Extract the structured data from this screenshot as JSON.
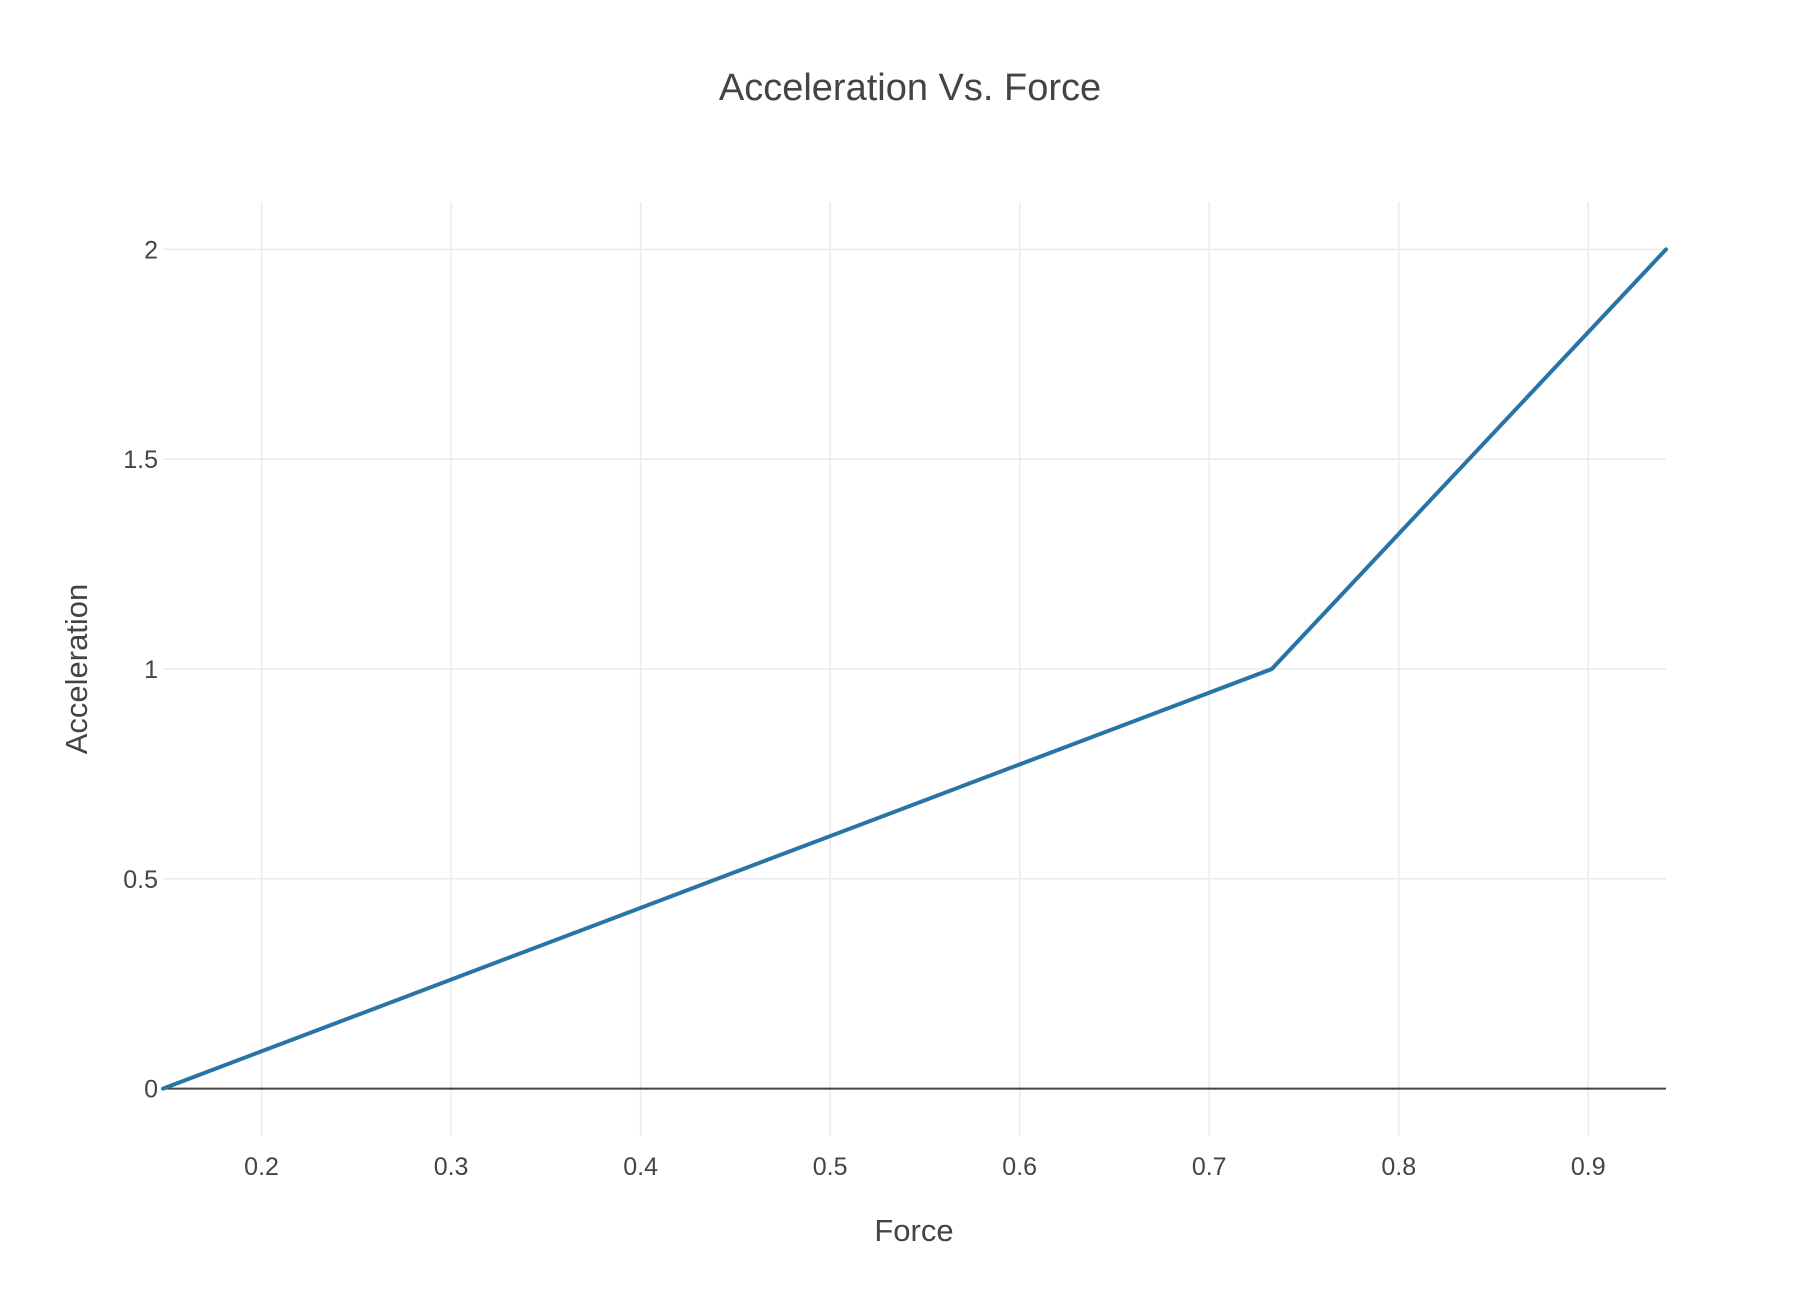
{
  "chart_data": {
    "type": "line",
    "title": "Acceleration Vs. Force",
    "xlabel": "Force",
    "ylabel": "Acceleration",
    "xlim": [
      0.148,
      0.941
    ],
    "ylim": [
      -0.113,
      2.113
    ],
    "x_ticks": [
      0.2,
      0.3,
      0.4,
      0.5,
      0.6,
      0.7,
      0.8,
      0.9
    ],
    "x_tick_labels": [
      "0.2",
      "0.3",
      "0.4",
      "0.5",
      "0.6",
      "0.7",
      "0.8",
      "0.9"
    ],
    "y_ticks": [
      0,
      0.5,
      1,
      1.5,
      2
    ],
    "y_tick_labels": [
      "0",
      "0.5",
      "1",
      "1.5",
      "2"
    ],
    "grid": true,
    "legend": "none",
    "series": [
      {
        "color": "#2874a6",
        "x": [
          0.148,
          0.733,
          0.941
        ],
        "y": [
          0,
          1,
          2
        ]
      }
    ]
  }
}
